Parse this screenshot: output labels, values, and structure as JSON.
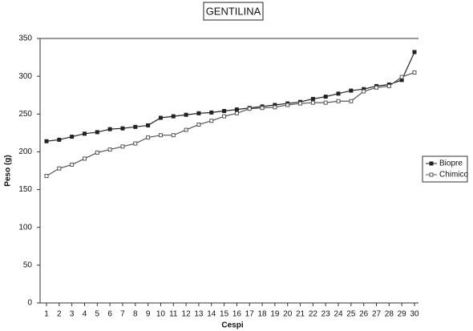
{
  "chart_data": {
    "type": "line",
    "title": "GENTILINA",
    "x_label": "Cespi",
    "y_label": "Peso (g)",
    "categories": [
      "1",
      "2",
      "3",
      "4",
      "5",
      "6",
      "7",
      "8",
      "9",
      "10",
      "11",
      "12",
      "13",
      "14",
      "15",
      "16",
      "17",
      "18",
      "19",
      "20",
      "21",
      "22",
      "23",
      "24",
      "25",
      "26",
      "27",
      "28",
      "29",
      "30"
    ],
    "series": [
      {
        "name": "Biopre",
        "color": "#222222",
        "marker": "filled",
        "values": [
          214,
          216,
          220,
          224,
          226,
          230,
          231,
          233,
          235,
          245,
          247,
          249,
          251,
          252,
          254,
          256,
          258,
          260,
          262,
          264,
          266,
          270,
          273,
          277,
          281,
          283,
          287,
          289,
          295,
          332
        ]
      },
      {
        "name": "Chimico",
        "color": "#555555",
        "marker": "open",
        "values": [
          168,
          178,
          183,
          191,
          199,
          203,
          207,
          211,
          219,
          222,
          222,
          229,
          236,
          241,
          247,
          251,
          257,
          258,
          259,
          262,
          264,
          265,
          265,
          267,
          267,
          280,
          285,
          287,
          299,
          305
        ]
      }
    ],
    "ylim": [
      0,
      350
    ],
    "yticks": [
      0,
      50,
      100,
      150,
      200,
      250,
      300,
      350
    ],
    "legend": "right"
  }
}
